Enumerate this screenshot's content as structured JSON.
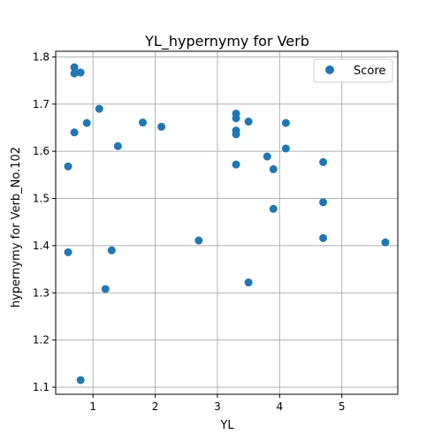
{
  "chart_data": {
    "type": "scatter",
    "title": "YL_hypernymy for Verb",
    "xlabel": "YL",
    "ylabel": "hypernymy for Verb_No.102",
    "xlim": [
      0.4,
      5.9
    ],
    "ylim": [
      1.085,
      1.812
    ],
    "xticks": [
      1,
      2,
      3,
      4,
      5
    ],
    "yticks": [
      1.1,
      1.2,
      1.3,
      1.4,
      1.5,
      1.6,
      1.7,
      1.8
    ],
    "grid": true,
    "legend_position": "top-right",
    "color": "#1f77b4",
    "series": [
      {
        "name": "Score",
        "points": [
          {
            "x": 0.7,
            "y": 1.778
          },
          {
            "x": 0.7,
            "y": 1.765
          },
          {
            "x": 0.8,
            "y": 1.767
          },
          {
            "x": 1.1,
            "y": 1.69
          },
          {
            "x": 0.7,
            "y": 1.64
          },
          {
            "x": 0.9,
            "y": 1.66
          },
          {
            "x": 1.4,
            "y": 1.611
          },
          {
            "x": 0.6,
            "y": 1.568
          },
          {
            "x": 1.8,
            "y": 1.661
          },
          {
            "x": 2.1,
            "y": 1.652
          },
          {
            "x": 0.6,
            "y": 1.386
          },
          {
            "x": 1.3,
            "y": 1.39
          },
          {
            "x": 1.2,
            "y": 1.308
          },
          {
            "x": 0.8,
            "y": 1.115
          },
          {
            "x": 2.7,
            "y": 1.411
          },
          {
            "x": 3.3,
            "y": 1.68
          },
          {
            "x": 3.3,
            "y": 1.67
          },
          {
            "x": 3.3,
            "y": 1.644
          },
          {
            "x": 3.3,
            "y": 1.636
          },
          {
            "x": 3.5,
            "y": 1.663
          },
          {
            "x": 3.3,
            "y": 1.572
          },
          {
            "x": 3.5,
            "y": 1.322
          },
          {
            "x": 3.8,
            "y": 1.589
          },
          {
            "x": 3.9,
            "y": 1.562
          },
          {
            "x": 3.9,
            "y": 1.478
          },
          {
            "x": 4.1,
            "y": 1.66
          },
          {
            "x": 4.1,
            "y": 1.606
          },
          {
            "x": 4.7,
            "y": 1.577
          },
          {
            "x": 4.7,
            "y": 1.492
          },
          {
            "x": 4.7,
            "y": 1.416
          },
          {
            "x": 5.7,
            "y": 1.407
          }
        ]
      }
    ]
  }
}
